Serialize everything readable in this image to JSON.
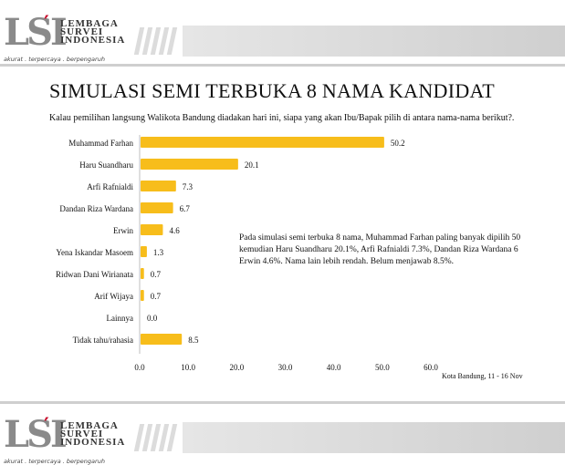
{
  "header": {
    "logo_line1": "LEMBAGA",
    "logo_line2": "SURVEI",
    "logo_line3": "INDONESIA",
    "logo_tagline": "akurat . terpercaya . berpengaruh"
  },
  "slide": {
    "title": "SIMULASI SEMI TERBUKA 8 NAMA KANDIDAT",
    "question": "Kalau pemilihan langsung Walikota Bandung diadakan hari ini, siapa yang akan Ibu/Bapak pilih di antara nama-nama berikut?.",
    "note_lines": [
      "Pada simulasi semi terbuka 8 nama, Muhammad Farhan paling banyak dipilih 50",
      "kemudian Haru Suandharu 20.1%, Arfi Rafnialdi 7.3%, Dandan Riza Wardana 6",
      "Erwin 4.6%. Nama lain lebih rendah. Belum menjawab 8.5%."
    ],
    "footer": "Kota Bandung, 11 - 16 Nov"
  },
  "colors": {
    "bar": "#f7bd1b",
    "axis": "#bfbfbf"
  },
  "chart_data": {
    "type": "bar",
    "orientation": "horizontal",
    "categories": [
      "Muhammad Farhan",
      "Haru Suandharu",
      "Arfi Rafnialdi",
      "Dandan Riza Wardana",
      "Erwin",
      "Yena Iskandar Masoem",
      "Ridwan Dani Wirianata",
      "Arif Wijaya",
      "Lainnya",
      "Tidak tahu/rahasia"
    ],
    "values": [
      50.2,
      20.1,
      7.3,
      6.7,
      4.6,
      1.3,
      0.7,
      0.7,
      0.0,
      8.5
    ],
    "value_labels": [
      "50.2",
      "20.1",
      "7.3",
      "6.7",
      "4.6",
      "1.3",
      "0.7",
      "0.7",
      "0.0",
      "8.5"
    ],
    "xticks": [
      "0.0",
      "10.0",
      "20.0",
      "30.0",
      "40.0",
      "50.0",
      "60.0"
    ],
    "xlim": [
      0,
      60
    ],
    "grid": false
  }
}
